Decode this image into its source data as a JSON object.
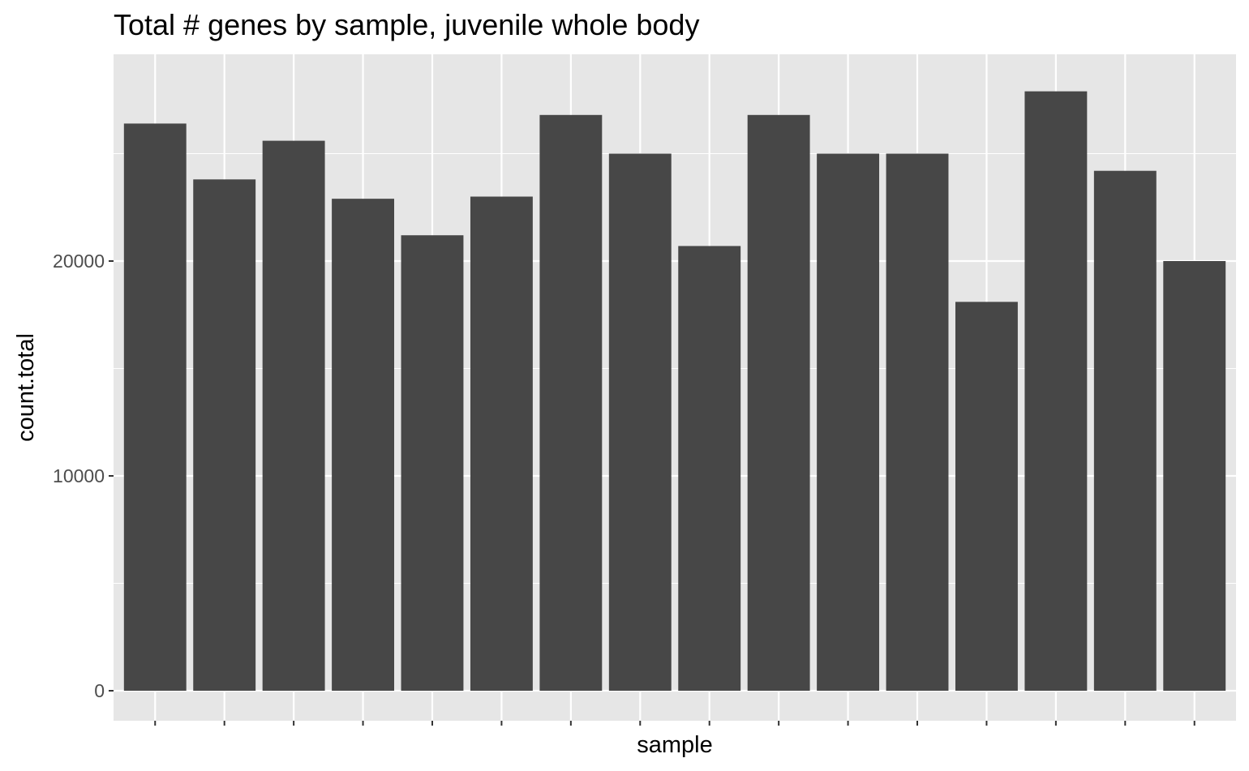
{
  "chart_data": {
    "type": "bar",
    "title": "Total # genes by sample, juvenile whole body",
    "xlabel": "sample",
    "ylabel": "count.total",
    "categories": [
      "",
      "",
      "",
      "",
      "",
      "",
      "",
      "",
      "",
      "",
      "",
      "",
      "",
      "",
      "",
      ""
    ],
    "values": [
      26400,
      23800,
      25600,
      22900,
      21200,
      23000,
      26800,
      25000,
      20700,
      26800,
      25000,
      25000,
      18100,
      27900,
      24200,
      20000
    ],
    "ylim": [
      0,
      29700
    ],
    "yticks": [
      0,
      10000,
      20000
    ],
    "ytick_labels": [
      "0",
      "10000",
      "20000"
    ],
    "grid": true,
    "show_x_tick_labels": false,
    "colors": {
      "bar": "#474747",
      "panel": "#e6e6e6",
      "grid": "#ffffff",
      "tick": "#333333"
    }
  }
}
